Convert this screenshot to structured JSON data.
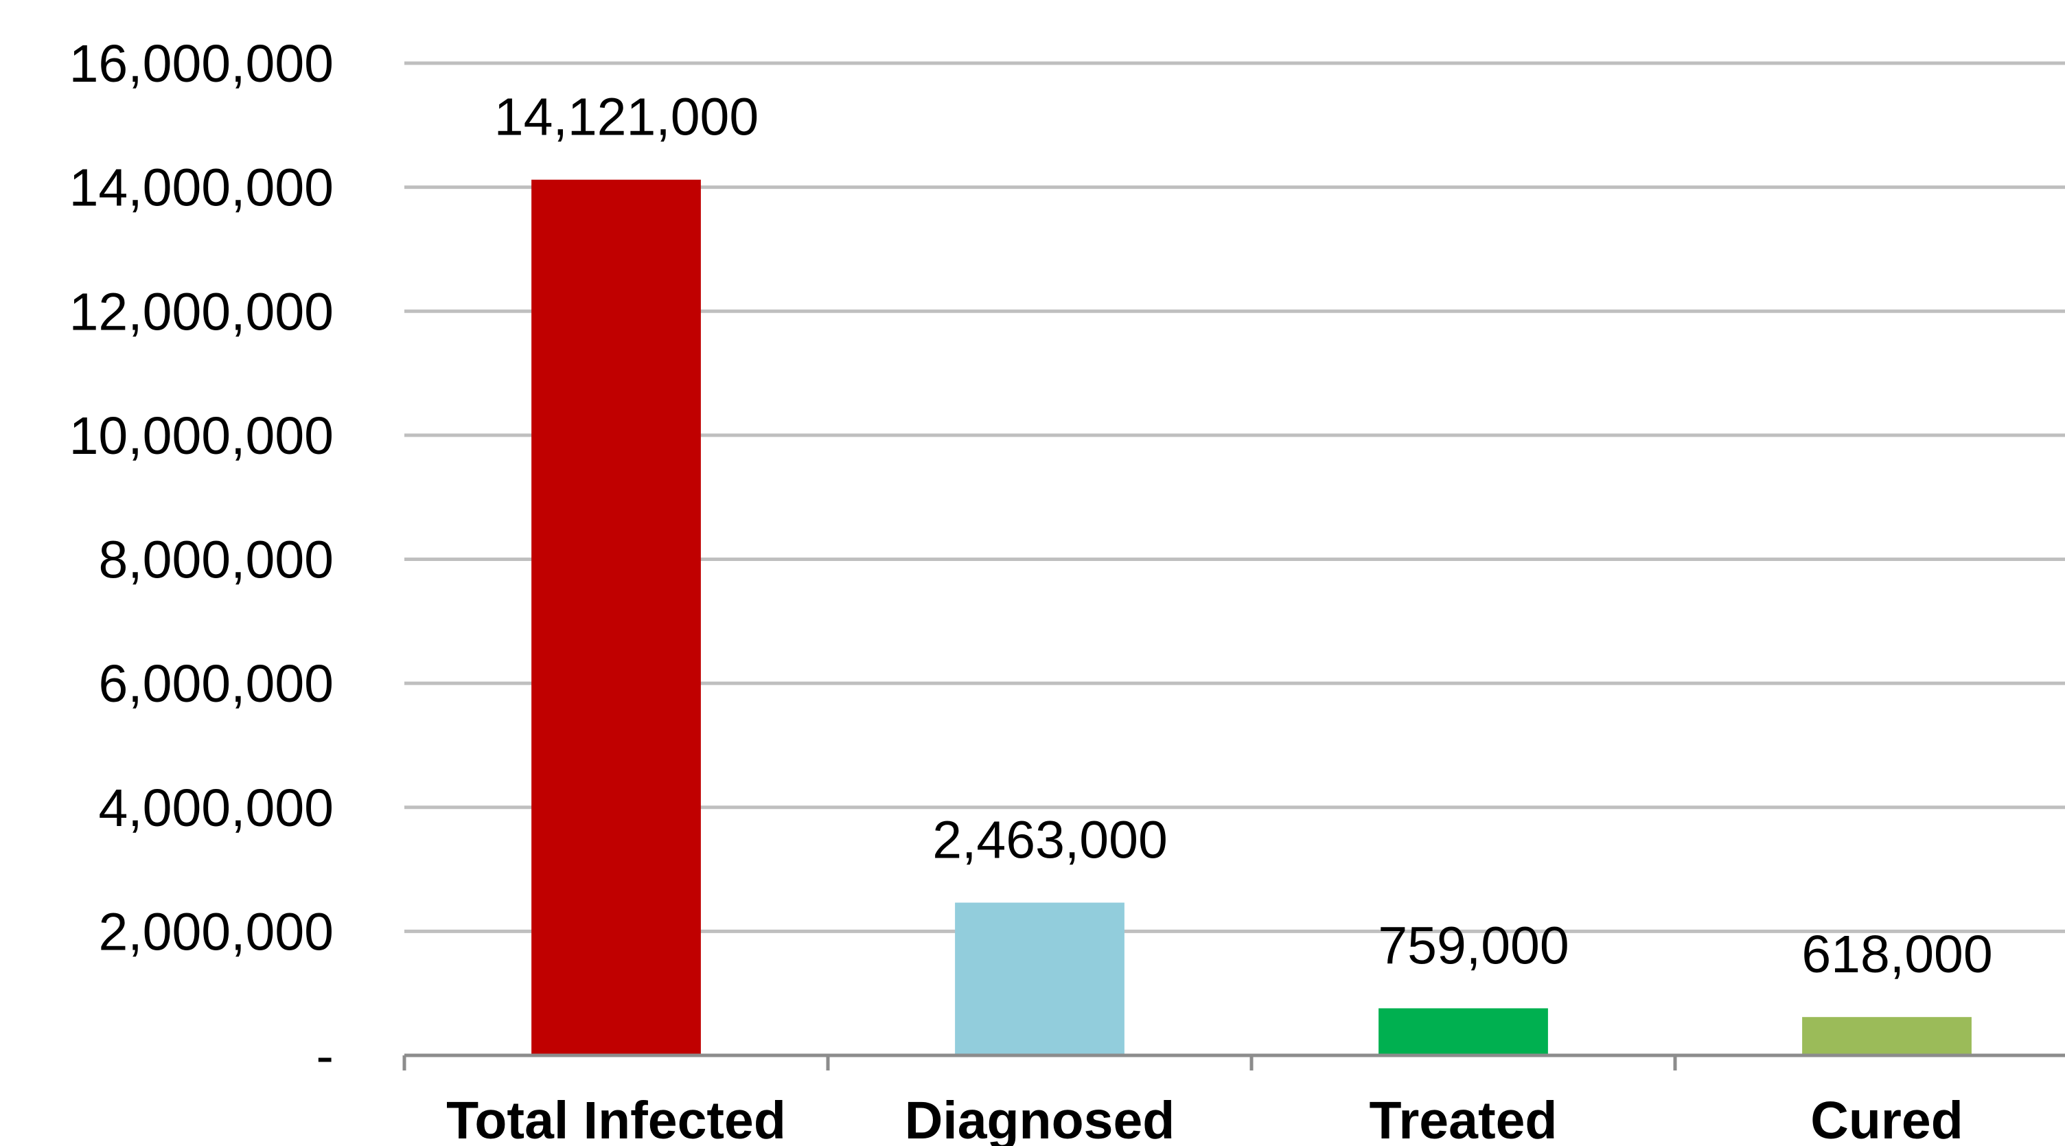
{
  "chart_data": {
    "type": "bar",
    "categories": [
      "Total Infected",
      "Diagnosed",
      "Treated",
      "Cured"
    ],
    "values": [
      14121000,
      2463000,
      759000,
      618000
    ],
    "value_labels": [
      "14,121,000",
      "2,463,000",
      "759,000",
      "618,000"
    ],
    "colors": [
      "#c00000",
      "#92cddc",
      "#00b050",
      "#9bbb59"
    ],
    "ylim": [
      0,
      16000000
    ],
    "yticks": [
      {
        "value": 0,
        "label": "-"
      },
      {
        "value": 2000000,
        "label": "2,000,000"
      },
      {
        "value": 4000000,
        "label": "4,000,000"
      },
      {
        "value": 6000000,
        "label": "6,000,000"
      },
      {
        "value": 8000000,
        "label": "8,000,000"
      },
      {
        "value": 10000000,
        "label": "10,000,000"
      },
      {
        "value": 12000000,
        "label": "12,000,000"
      },
      {
        "value": 14000000,
        "label": "14,000,000"
      },
      {
        "value": 16000000,
        "label": "16,000,000"
      }
    ],
    "grid": true
  }
}
